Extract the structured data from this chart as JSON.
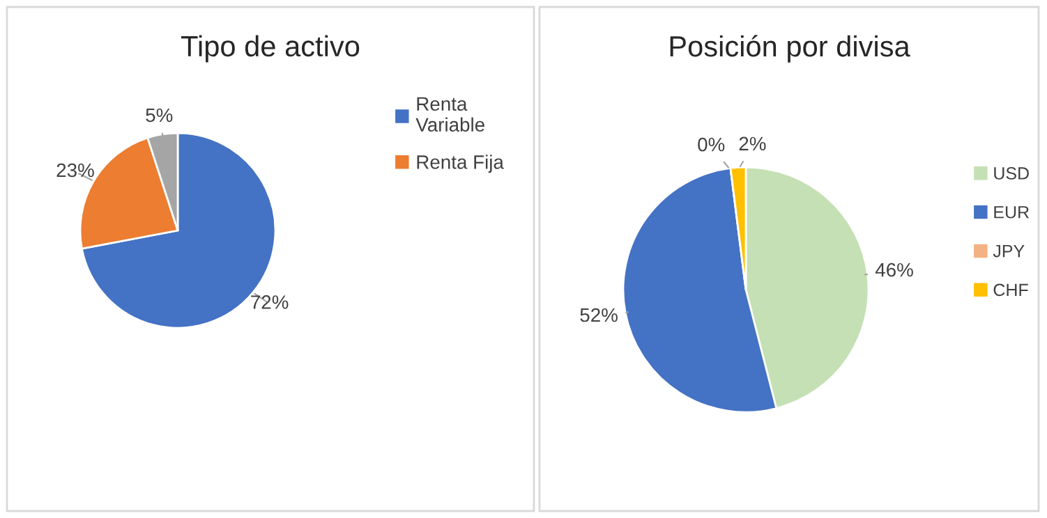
{
  "chart_data": [
    {
      "type": "pie",
      "title": "Tipo de activo",
      "categories": [
        "Renta Variable",
        "Renta Fija",
        null
      ],
      "values": [
        72,
        23,
        5
      ],
      "colors": [
        "#4472c4",
        "#ed7d31",
        "#a5a5a5"
      ],
      "value_labels": [
        "72%",
        "23%",
        "5%"
      ],
      "legend": "right"
    },
    {
      "type": "pie",
      "title": "Posición por divisa",
      "categories": [
        "USD",
        "EUR",
        "JPY",
        "CHF"
      ],
      "values": [
        46,
        52,
        0,
        2
      ],
      "colors": [
        "#c5e0b4",
        "#4472c4",
        "#f4b183",
        "#ffc000"
      ],
      "value_labels": [
        "46%",
        "52%",
        "0%",
        "2%"
      ],
      "legend": "right"
    }
  ]
}
